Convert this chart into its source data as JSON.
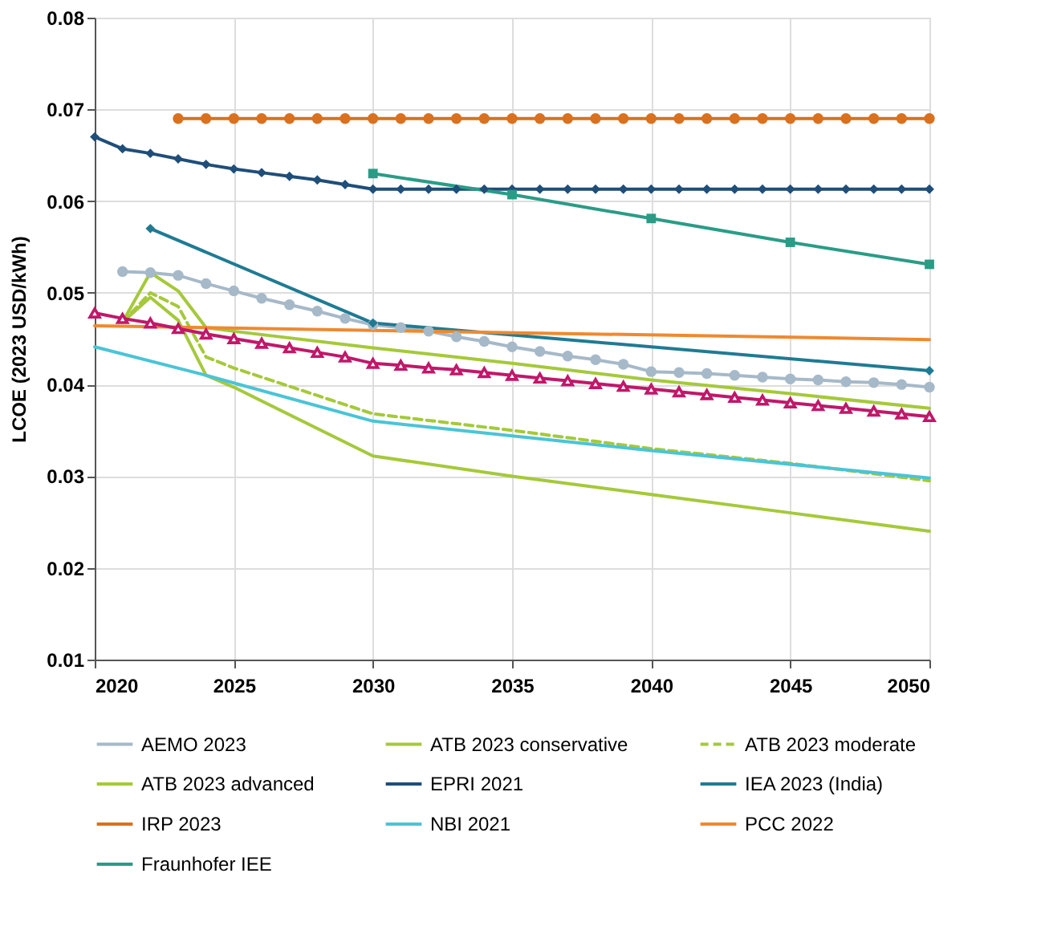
{
  "chart_data": {
    "type": "line",
    "ylabel": "LCOE (2023 USD/kWh)",
    "xlim": [
      2020,
      2050
    ],
    "xticks": [
      2020,
      2025,
      2030,
      2035,
      2040,
      2045,
      2050
    ],
    "ylim": [
      0.01,
      0.08
    ],
    "yticks": [
      0.01,
      0.02,
      0.03,
      0.04,
      0.05,
      0.06,
      0.07,
      0.08
    ],
    "grid": true,
    "legend": "bottom",
    "series": [
      {
        "name": "AEMO 2023",
        "color": "#a6b9c9",
        "marker": "circle",
        "x": [
          2021,
          2022,
          2023,
          2024,
          2025,
          2026,
          2027,
          2028,
          2029,
          2030,
          2031,
          2032,
          2033,
          2034,
          2035,
          2036,
          2037,
          2038,
          2039,
          2040,
          2041,
          2042,
          2043,
          2044,
          2045,
          2046,
          2047,
          2048,
          2049,
          2050
        ],
        "values": [
          0.0523,
          0.0522,
          0.0519,
          0.051,
          0.0502,
          0.0494,
          0.0487,
          0.048,
          0.0472,
          0.0465,
          0.0462,
          0.0458,
          0.0452,
          0.0447,
          0.0441,
          0.0436,
          0.0431,
          0.0427,
          0.0422,
          0.0414,
          0.0413,
          0.0412,
          0.041,
          0.0408,
          0.0406,
          0.0405,
          0.0403,
          0.0402,
          0.04,
          0.0397
        ]
      },
      {
        "name": "ATB 2023 conservative",
        "color": "#a5c93a",
        "marker": "none",
        "x": [
          2021,
          2022,
          2023,
          2024,
          2025,
          2030,
          2035,
          2040,
          2045,
          2050
        ],
        "values": [
          0.0468,
          0.0522,
          0.0502,
          0.0462,
          0.0458,
          0.044,
          0.0423,
          0.0405,
          0.039,
          0.0374
        ]
      },
      {
        "name": "ATB 2023 moderate",
        "color": "#a5c93a",
        "marker": "none",
        "line_style": "dashed",
        "x": [
          2021,
          2022,
          2023,
          2024,
          2025,
          2030,
          2035,
          2040,
          2045,
          2050
        ],
        "values": [
          0.0468,
          0.05,
          0.0485,
          0.043,
          0.0418,
          0.0368,
          0.035,
          0.033,
          0.0314,
          0.0295
        ]
      },
      {
        "name": "ATB 2023 advanced",
        "color": "#a5c93a",
        "marker": "none",
        "x": [
          2021,
          2022,
          2023,
          2024,
          2025,
          2030,
          2035,
          2040,
          2045,
          2050
        ],
        "values": [
          0.0468,
          0.0495,
          0.047,
          0.041,
          0.0397,
          0.0322,
          0.03,
          0.028,
          0.026,
          0.024
        ]
      },
      {
        "name": "EPRI 2021",
        "color": "#1f4e79",
        "marker": "diamond",
        "x": [
          2020,
          2021,
          2022,
          2023,
          2024,
          2025,
          2026,
          2027,
          2028,
          2029,
          2030,
          2031,
          2032,
          2033,
          2034,
          2035,
          2036,
          2037,
          2038,
          2039,
          2040,
          2041,
          2042,
          2043,
          2044,
          2045,
          2046,
          2047,
          2048,
          2049,
          2050
        ],
        "values": [
          0.067,
          0.0657,
          0.0652,
          0.0646,
          0.064,
          0.0635,
          0.0631,
          0.0627,
          0.0623,
          0.0618,
          0.0613,
          0.0613,
          0.0613,
          0.0613,
          0.0613,
          0.0613,
          0.0613,
          0.0613,
          0.0613,
          0.0613,
          0.0613,
          0.0613,
          0.0613,
          0.0613,
          0.0613,
          0.0613,
          0.0613,
          0.0613,
          0.0613,
          0.0613,
          0.0613
        ]
      },
      {
        "name": "IEA 2023 (India)",
        "color": "#1f7b93",
        "marker": "diamond",
        "x": [
          2022,
          2030,
          2050
        ],
        "values": [
          0.057,
          0.0467,
          0.0415
        ]
      },
      {
        "name": "IRP 2023",
        "color": "#d9711e",
        "marker": "circle",
        "x": [
          2023,
          2024,
          2025,
          2026,
          2027,
          2028,
          2029,
          2030,
          2031,
          2032,
          2033,
          2034,
          2035,
          2036,
          2037,
          2038,
          2039,
          2040,
          2041,
          2042,
          2043,
          2044,
          2045,
          2046,
          2047,
          2048,
          2049,
          2050
        ],
        "values": [
          0.069,
          0.069,
          0.069,
          0.069,
          0.069,
          0.069,
          0.069,
          0.069,
          0.069,
          0.069,
          0.069,
          0.069,
          0.069,
          0.069,
          0.069,
          0.069,
          0.069,
          0.069,
          0.069,
          0.069,
          0.069,
          0.069,
          0.069,
          0.069,
          0.069,
          0.069,
          0.069,
          0.069
        ]
      },
      {
        "color": "#c0186a",
        "marker": "triangle",
        "x": [
          2020,
          2021,
          2022,
          2023,
          2024,
          2025,
          2026,
          2027,
          2028,
          2029,
          2030,
          2031,
          2032,
          2033,
          2034,
          2035,
          2036,
          2037,
          2038,
          2039,
          2040,
          2041,
          2042,
          2043,
          2044,
          2045,
          2046,
          2047,
          2048,
          2049,
          2050
        ],
        "values": [
          0.0478,
          0.0472,
          0.0467,
          0.0461,
          0.0455,
          0.045,
          0.0445,
          0.044,
          0.0435,
          0.043,
          0.0423,
          0.0421,
          0.0418,
          0.0416,
          0.0413,
          0.041,
          0.0407,
          0.0404,
          0.0401,
          0.0398,
          0.0395,
          0.0392,
          0.0389,
          0.0386,
          0.0383,
          0.038,
          0.0377,
          0.0374,
          0.0371,
          0.0368,
          0.0365
        ]
      },
      {
        "name": "NBI 2021",
        "color": "#4bc4d6",
        "marker": "none",
        "x": [
          2020,
          2024,
          2030,
          2040,
          2050
        ],
        "values": [
          0.0441,
          0.041,
          0.036,
          0.0328,
          0.0298
        ]
      },
      {
        "name": "PCC 2022",
        "color": "#f0892e",
        "marker": "none",
        "x": [
          2020,
          2050
        ],
        "values": [
          0.0464,
          0.0449
        ]
      },
      {
        "name": "Fraunhofer IEE",
        "color": "#2a9c86",
        "marker": "square",
        "x": [
          2030,
          2035,
          2040,
          2045,
          2050
        ],
        "values": [
          0.063,
          0.0607,
          0.0581,
          0.0555,
          0.0531
        ]
      }
    ]
  }
}
